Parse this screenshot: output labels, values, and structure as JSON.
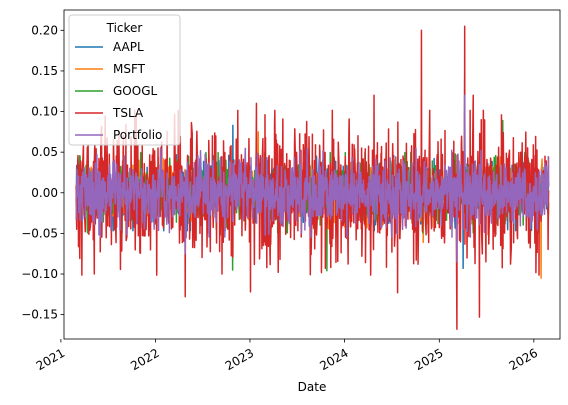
{
  "chart_data": {
    "type": "line",
    "title": "",
    "xlabel": "Date",
    "ylabel": "",
    "x_range": [
      "2021-01-13",
      "2026-04-12"
    ],
    "ylim": [
      -0.18,
      0.225
    ],
    "x_ticks": [
      "2021",
      "2022",
      "2023",
      "2024",
      "2025",
      "2026"
    ],
    "y_ticks": [
      -0.15,
      -0.1,
      -0.05,
      0.0,
      0.05,
      0.1,
      0.15,
      0.2
    ],
    "y_tick_labels": [
      "−0.15",
      "−0.10",
      "−0.05",
      "0.00",
      "0.05",
      "0.10",
      "0.15",
      "0.20"
    ],
    "data_range": [
      "2021-03-01",
      "2026-03-01"
    ],
    "grid": false,
    "legend": {
      "title": "Ticker",
      "position": "top-left"
    },
    "series": [
      {
        "name": "AAPL",
        "color": "#1f77b4",
        "approx_std": 0.018,
        "annotated_points": [
          {
            "x": "2022-10-27",
            "y": 0.083
          },
          {
            "x": "2023-09-15",
            "y": 0.045
          },
          {
            "x": "2025-04-09",
            "y": 0.14
          },
          {
            "x": "2025-04-03",
            "y": -0.093
          }
        ]
      },
      {
        "name": "MSFT",
        "color": "#ff7f0e",
        "approx_std": 0.017,
        "annotated_points": [
          {
            "x": "2023-02-02",
            "y": 0.075
          },
          {
            "x": "2024-10-31",
            "y": -0.061
          },
          {
            "x": "2026-01-29",
            "y": -0.105
          }
        ]
      },
      {
        "name": "GOOGL",
        "color": "#2ca02c",
        "approx_std": 0.019,
        "annotated_points": [
          {
            "x": "2022-10-26",
            "y": -0.095
          },
          {
            "x": "2023-10-25",
            "y": -0.096
          },
          {
            "x": "2025-04-09",
            "y": 0.098
          },
          {
            "x": "2025-09-03",
            "y": 0.089
          }
        ]
      },
      {
        "name": "TSLA",
        "color": "#d62728",
        "approx_std": 0.039,
        "annotated_points": [
          {
            "x": "2021-05-10",
            "y": -0.1
          },
          {
            "x": "2022-04-26",
            "y": -0.128
          },
          {
            "x": "2022-09-15",
            "y": -0.1
          },
          {
            "x": "2023-01-03",
            "y": -0.122
          },
          {
            "x": "2023-01-26",
            "y": 0.11
          },
          {
            "x": "2023-04-20",
            "y": -0.098
          },
          {
            "x": "2023-10-19",
            "y": -0.093
          },
          {
            "x": "2024-04-24",
            "y": 0.12
          },
          {
            "x": "2024-07-24",
            "y": -0.123
          },
          {
            "x": "2024-10-11",
            "y": -0.088
          },
          {
            "x": "2024-10-24",
            "y": 0.2
          },
          {
            "x": "2025-03-10",
            "y": -0.168
          },
          {
            "x": "2025-04-09",
            "y": 0.205
          },
          {
            "x": "2025-05-12",
            "y": 0.12
          },
          {
            "x": "2025-06-05",
            "y": -0.153
          },
          {
            "x": "2026-01-29",
            "y": -0.035
          }
        ]
      },
      {
        "name": "Portfolio",
        "color": "#9467bd",
        "approx_std": 0.021,
        "annotated_points": [
          {
            "x": "2025-04-09",
            "y": 0.12
          },
          {
            "x": "2025-03-10",
            "y": -0.085
          },
          {
            "x": "2022-04-26",
            "y": -0.075
          }
        ]
      }
    ]
  }
}
